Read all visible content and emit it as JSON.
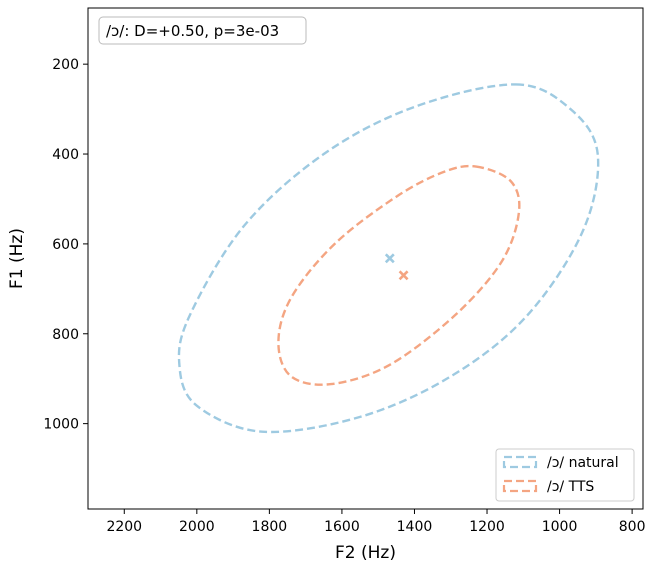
{
  "chart_data": {
    "type": "scatter",
    "title": "",
    "xlabel": "F2 (Hz)",
    "ylabel": "F1 (Hz)",
    "xlim": [
      2300,
      770
    ],
    "ylim": [
      1190,
      75
    ],
    "x_inverted": true,
    "y_inverted": true,
    "xticks": [
      2200,
      2000,
      1800,
      1600,
      1400,
      1200,
      1000,
      800
    ],
    "yticks": [
      200,
      400,
      600,
      800,
      1000
    ],
    "grid": false,
    "legend_position": "lower-right",
    "annotation": "/ɔ/: D=+0.50, p=3e-03",
    "series": [
      {
        "name": "/ɔ/ natural",
        "color": "#9ecae1",
        "marker": "x",
        "mean": {
          "F2": 1468,
          "F1": 632
        },
        "ellipse": [
          [
            1120,
            245
          ],
          [
            970,
            300
          ],
          [
            895,
            400
          ],
          [
            935,
            570
          ],
          [
            1090,
            760
          ],
          [
            1300,
            895
          ],
          [
            1550,
            985
          ],
          [
            1820,
            1018
          ],
          [
            2000,
            960
          ],
          [
            2048,
            870
          ],
          [
            2020,
            760
          ],
          [
            1870,
            560
          ],
          [
            1650,
            400
          ],
          [
            1400,
            295
          ]
        ]
      },
      {
        "name": "/ɔ/ TTS",
        "color": "#f4a582",
        "marker": "x",
        "mean": {
          "F2": 1430,
          "F1": 670
        },
        "ellipse": [
          [
            1230,
            428
          ],
          [
            1135,
            460
          ],
          [
            1112,
            530
          ],
          [
            1160,
            640
          ],
          [
            1290,
            760
          ],
          [
            1470,
            870
          ],
          [
            1630,
            912
          ],
          [
            1740,
            895
          ],
          [
            1775,
            820
          ],
          [
            1740,
            720
          ],
          [
            1620,
            600
          ],
          [
            1450,
            495
          ],
          [
            1320,
            440
          ]
        ]
      }
    ]
  }
}
